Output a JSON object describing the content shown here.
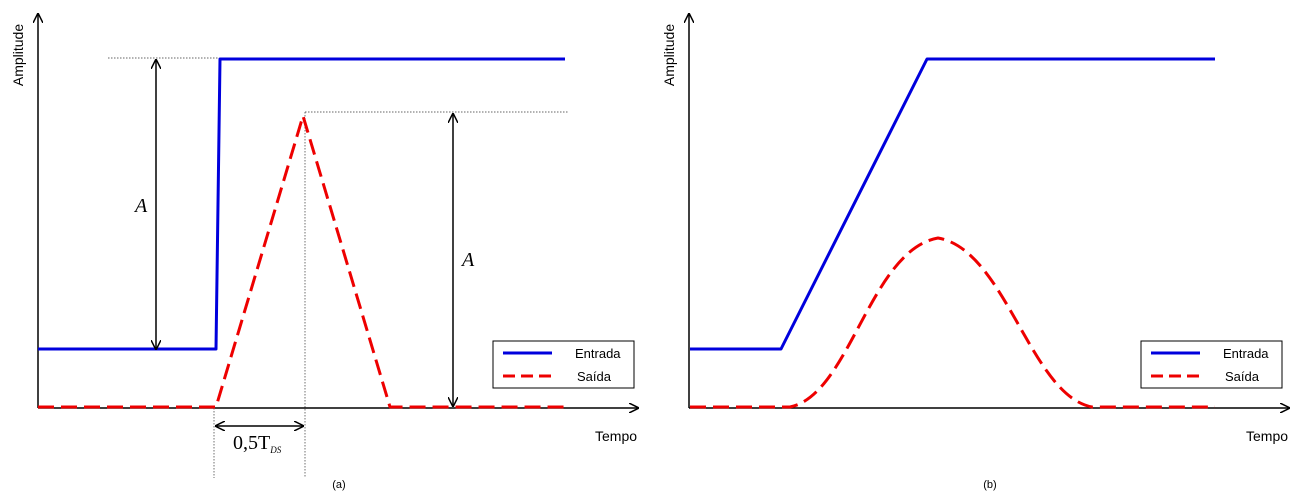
{
  "panel_a": {
    "ylabel": "Amplitude",
    "xlabel": "Tempo",
    "caption": "(a)",
    "amplitude_label_left": "A",
    "amplitude_label_right": "A",
    "duration_label_main": "0,5T",
    "duration_label_sub": "DS",
    "legend": {
      "entrada": "Entrada",
      "saida": "Saída"
    }
  },
  "panel_b": {
    "ylabel": "Amplitude",
    "xlabel": "Tempo",
    "caption": "(b)",
    "legend": {
      "entrada": "Entrada",
      "saida": "Saída"
    }
  },
  "colors": {
    "entrada": "#0000dd",
    "saida": "#ee0000",
    "axis": "#000000"
  }
}
